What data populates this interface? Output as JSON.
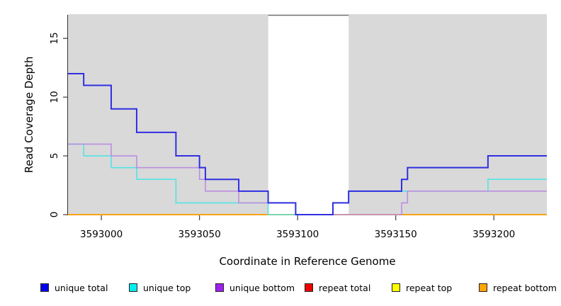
{
  "chart_data": {
    "type": "line",
    "subtype": "step",
    "title": "",
    "xlabel": "Coordinate in Reference Genome",
    "ylabel": "Read Coverage Depth",
    "xlim": [
      3592983,
      3593227
    ],
    "ylim": [
      0,
      17
    ],
    "x_ticks": [
      3593000,
      3593050,
      3593100,
      3593150,
      3593200
    ],
    "x_tick_labels": [
      "3593000",
      "3593050",
      "3593100",
      "3593150",
      "3593200"
    ],
    "y_ticks": [
      0,
      5,
      10,
      15
    ],
    "y_tick_labels": [
      "0",
      "5",
      "10",
      "15"
    ],
    "grid": false,
    "legend_position": "bottom",
    "background_color": "#ffffff",
    "shaded_regions": [
      {
        "x0": 3592983,
        "x1": 3593085,
        "color": "#d9d9d9"
      },
      {
        "x0": 3593126,
        "x1": 3593227,
        "color": "#d9d9d9"
      }
    ],
    "series": [
      {
        "name": "repeat total",
        "line_color": "#dd0000",
        "width": 1.5,
        "steps": [
          [
            3592983,
            0
          ]
        ]
      },
      {
        "name": "repeat top",
        "line_color": "#f5f500",
        "width": 1.5,
        "steps": [
          [
            3592983,
            0
          ]
        ]
      },
      {
        "name": "repeat bottom",
        "line_color": "#ffa513",
        "width": 1.8,
        "steps": [
          [
            3592983,
            0
          ]
        ]
      },
      {
        "name": "unique top",
        "line_color": "#53e3e3",
        "width": 1.6,
        "steps": [
          [
            3592983,
            6
          ],
          [
            3592991,
            5
          ],
          [
            3593005,
            4
          ],
          [
            3593018,
            3
          ],
          [
            3593038,
            1
          ],
          [
            3593085,
            0
          ],
          [
            3593118,
            1
          ],
          [
            3593126,
            2
          ],
          [
            3593197,
            3
          ]
        ]
      },
      {
        "name": "unique bottom",
        "line_color": "#ba8ee0",
        "width": 1.6,
        "steps": [
          [
            3592983,
            6
          ],
          [
            3593005,
            5
          ],
          [
            3593018,
            4
          ],
          [
            3593050,
            3
          ],
          [
            3593053,
            2
          ],
          [
            3593070,
            1
          ],
          [
            3593099,
            0
          ],
          [
            3593153,
            1
          ],
          [
            3593156,
            2
          ]
        ]
      },
      {
        "name": "unique total",
        "line_color": "#2f2fe2",
        "width": 2,
        "steps": [
          [
            3592983,
            12
          ],
          [
            3592991,
            11
          ],
          [
            3593005,
            9
          ],
          [
            3593018,
            7
          ],
          [
            3593038,
            5
          ],
          [
            3593050,
            4
          ],
          [
            3593053,
            3
          ],
          [
            3593070,
            2
          ],
          [
            3593085,
            1
          ],
          [
            3593099,
            0
          ],
          [
            3593118,
            1
          ],
          [
            3593126,
            2
          ],
          [
            3593153,
            3
          ],
          [
            3593156,
            4
          ],
          [
            3593197,
            5
          ]
        ]
      }
    ]
  },
  "axes": {
    "x_title": "Coordinate in Reference Genome",
    "y_title": "Read Coverage Depth"
  },
  "legend": {
    "items": [
      {
        "label": "unique total",
        "color": "#0000ee"
      },
      {
        "label": "unique top",
        "color": "#00eeee"
      },
      {
        "label": "unique bottom",
        "color": "#a020f0"
      },
      {
        "label": "repeat total",
        "color": "#ee0000"
      },
      {
        "label": "repeat top",
        "color": "#ffff00"
      },
      {
        "label": "repeat bottom",
        "color": "#ffa500"
      }
    ]
  }
}
